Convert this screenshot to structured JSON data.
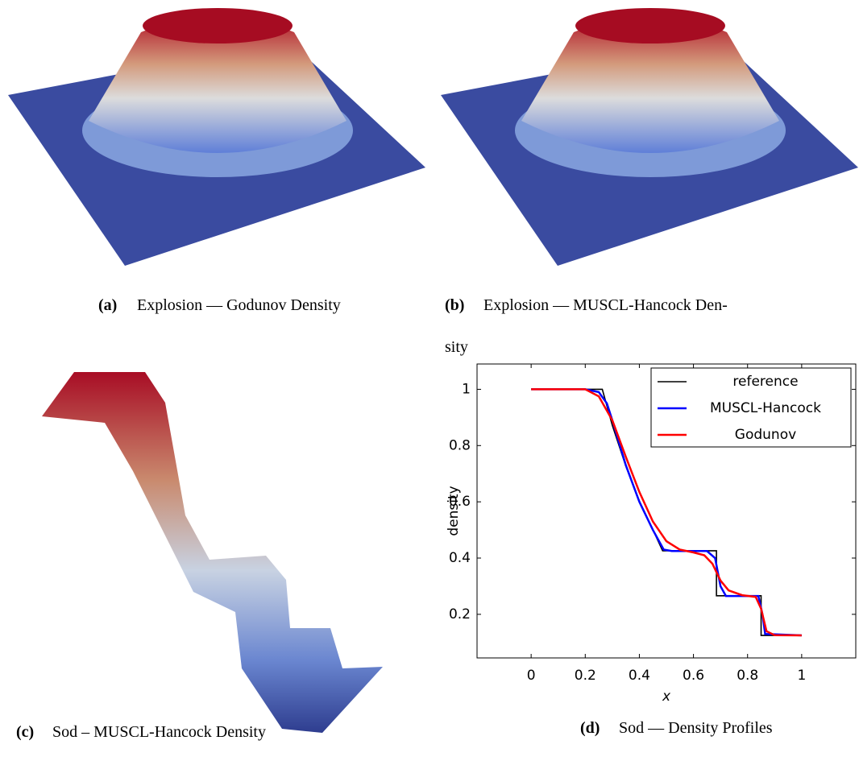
{
  "captions": [
    {
      "label": "(a)",
      "lines": [
        "Explosion — Godunov Density"
      ]
    },
    {
      "label": "(b)",
      "lines": [
        "Explosion — MUSCL-Hancock Den-",
        "sity"
      ]
    },
    {
      "label": "(c)",
      "lines": [
        "Sod – MUSCL-Hancock Density"
      ]
    },
    {
      "label": "(d)",
      "lines": [
        "Sod — Density Profiles"
      ]
    }
  ],
  "chart_data": {
    "type": "line",
    "xlabel": "x",
    "ylabel": "density",
    "xlim": [
      -0.2,
      1.2
    ],
    "ylim": [
      0.045,
      1.09
    ],
    "xticks": [
      0,
      0.2,
      0.4,
      0.6,
      0.8,
      1
    ],
    "yticks": [
      0.2,
      0.4,
      0.6,
      0.8,
      1
    ],
    "legend": "upper right",
    "series": [
      {
        "name": "reference",
        "color": "#000000",
        "x": [
          0,
          0.263,
          0.3,
          0.35,
          0.4,
          0.45,
          0.486,
          0.685,
          0.685,
          0.85,
          0.85,
          1
        ],
        "values": [
          1,
          1,
          0.872,
          0.727,
          0.603,
          0.501,
          0.426,
          0.426,
          0.266,
          0.266,
          0.125,
          0.125
        ]
      },
      {
        "name": "MUSCL-Hancock",
        "color": "#0000ff",
        "x": [
          0,
          0.2,
          0.25,
          0.28,
          0.3,
          0.35,
          0.4,
          0.45,
          0.49,
          0.52,
          0.65,
          0.68,
          0.7,
          0.72,
          0.84,
          0.855,
          0.865,
          1
        ],
        "values": [
          1,
          1,
          0.99,
          0.95,
          0.89,
          0.73,
          0.6,
          0.5,
          0.43,
          0.425,
          0.425,
          0.4,
          0.3,
          0.265,
          0.265,
          0.2,
          0.13,
          0.125
        ]
      },
      {
        "name": "Godunov",
        "color": "#ff0000",
        "x": [
          0,
          0.2,
          0.25,
          0.3,
          0.35,
          0.4,
          0.45,
          0.5,
          0.55,
          0.6,
          0.64,
          0.67,
          0.7,
          0.73,
          0.78,
          0.83,
          0.85,
          0.87,
          0.9,
          1
        ],
        "values": [
          1,
          1,
          0.975,
          0.89,
          0.76,
          0.635,
          0.53,
          0.46,
          0.43,
          0.42,
          0.41,
          0.38,
          0.32,
          0.285,
          0.268,
          0.262,
          0.22,
          0.14,
          0.126,
          0.125
        ]
      }
    ]
  }
}
